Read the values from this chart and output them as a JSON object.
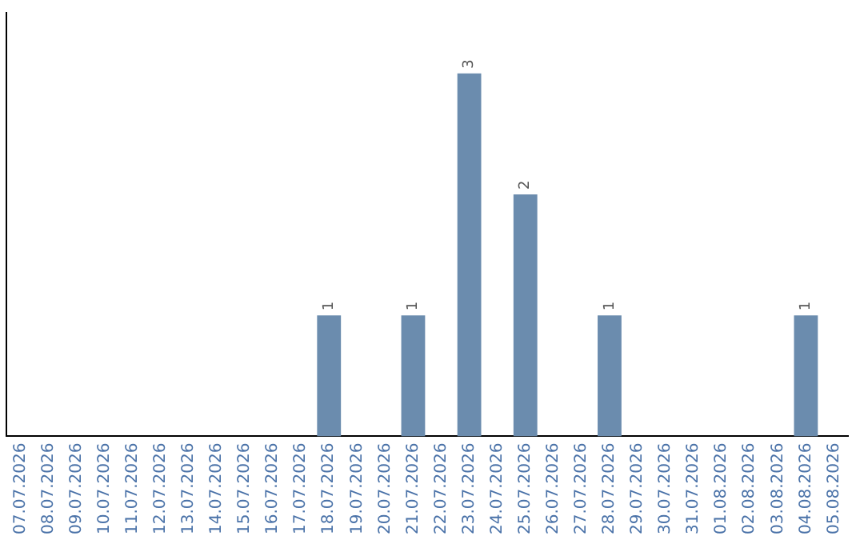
{
  "chart_data": {
    "type": "bar",
    "categories": [
      "07.07.2026",
      "08.07.2026",
      "09.07.2026",
      "10.07.2026",
      "11.07.2026",
      "12.07.2026",
      "13.07.2026",
      "14.07.2026",
      "15.07.2026",
      "16.07.2026",
      "17.07.2026",
      "18.07.2026",
      "19.07.2026",
      "20.07.2026",
      "21.07.2026",
      "22.07.2026",
      "23.07.2026",
      "24.07.2026",
      "25.07.2026",
      "26.07.2026",
      "27.07.2026",
      "28.07.2026",
      "29.07.2026",
      "30.07.2026",
      "31.07.2026",
      "01.08.2026",
      "02.08.2026",
      "03.08.2026",
      "04.08.2026",
      "05.08.2026"
    ],
    "values": [
      0,
      0,
      0,
      0,
      0,
      0,
      0,
      0,
      0,
      0,
      0,
      1,
      0,
      0,
      1,
      0,
      3,
      0,
      2,
      0,
      0,
      1,
      0,
      0,
      0,
      0,
      0,
      0,
      1,
      0
    ],
    "value_labels": [
      null,
      null,
      null,
      null,
      null,
      null,
      null,
      null,
      null,
      null,
      null,
      "1",
      null,
      null,
      "1",
      null,
      "3",
      null,
      "2",
      null,
      null,
      "1",
      null,
      null,
      null,
      null,
      null,
      null,
      "1",
      null
    ],
    "color": "#6b8cae",
    "grid": false,
    "legend": false,
    "tick_labels": "x"
  }
}
